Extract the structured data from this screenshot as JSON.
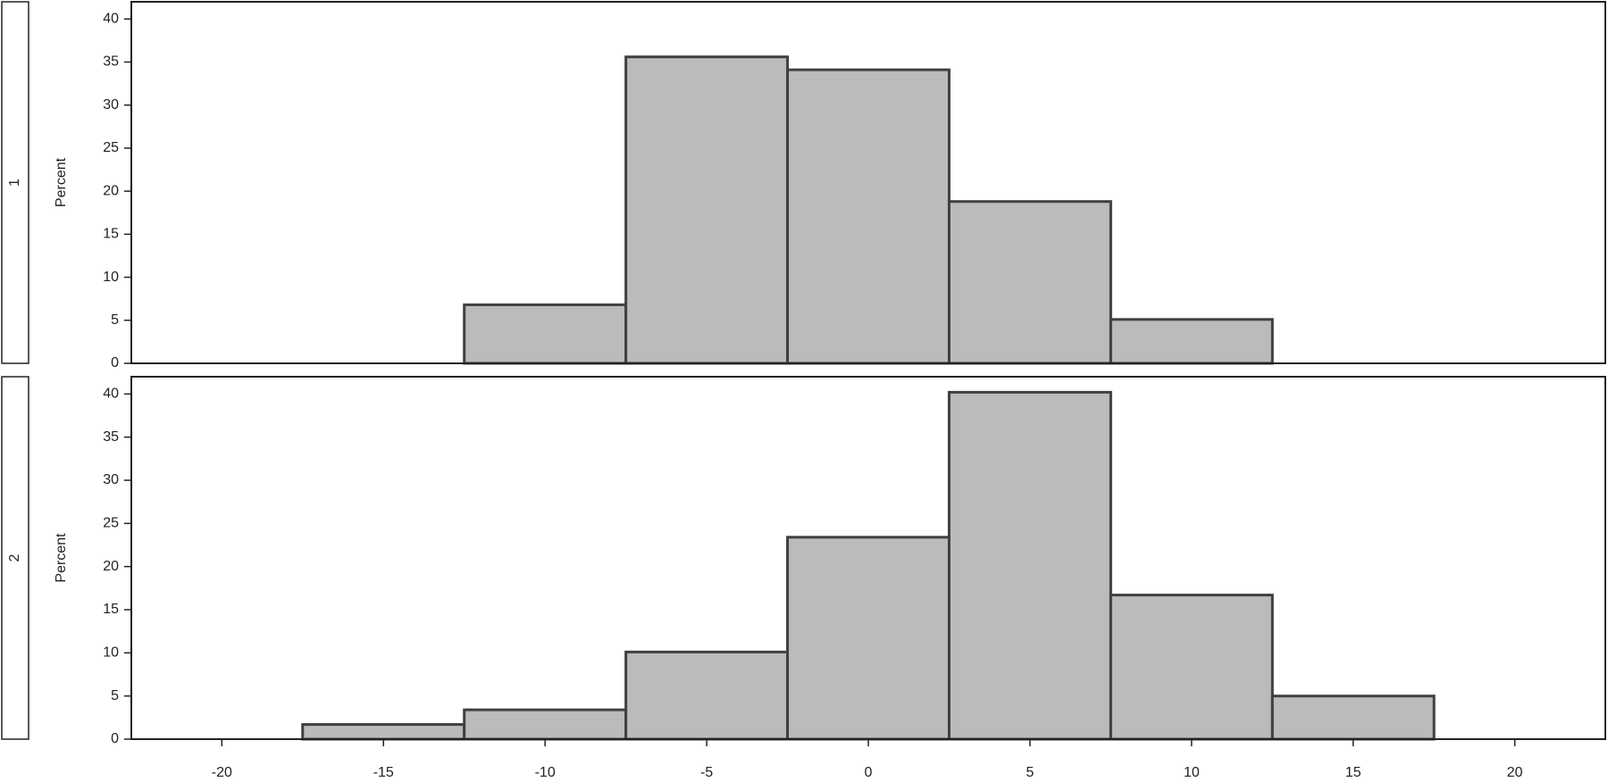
{
  "chart_data": [
    {
      "type": "histogram",
      "strip": "1",
      "ylabel": "Percent",
      "bins": [
        -12.5,
        -7.5,
        -2.5,
        2.5,
        7.5,
        12.5
      ],
      "values": [
        6.8,
        35.6,
        34.1,
        18.8,
        5.1
      ],
      "color": "#bbbbbb",
      "xlim": [
        -22.8,
        22.8
      ],
      "ylim": [
        0,
        42
      ],
      "yticks": [
        0,
        5,
        10,
        15,
        20,
        25,
        30,
        35,
        40
      ]
    },
    {
      "type": "histogram",
      "strip": "2",
      "ylabel": "Percent",
      "bins": [
        -17.5,
        -12.5,
        -7.5,
        -2.5,
        2.5,
        7.5,
        12.5,
        17.5
      ],
      "values": [
        1.7,
        3.4,
        10.1,
        23.4,
        40.2,
        16.7,
        5.0
      ],
      "color": "#bbbbbb",
      "xlim": [
        -22.8,
        22.8
      ],
      "ylim": [
        0,
        42
      ],
      "yticks": [
        0,
        5,
        10,
        15,
        20,
        25,
        30,
        35,
        40
      ],
      "xticks": [
        -20,
        -15,
        -10,
        -5,
        0,
        5,
        10,
        15,
        20
      ]
    }
  ]
}
